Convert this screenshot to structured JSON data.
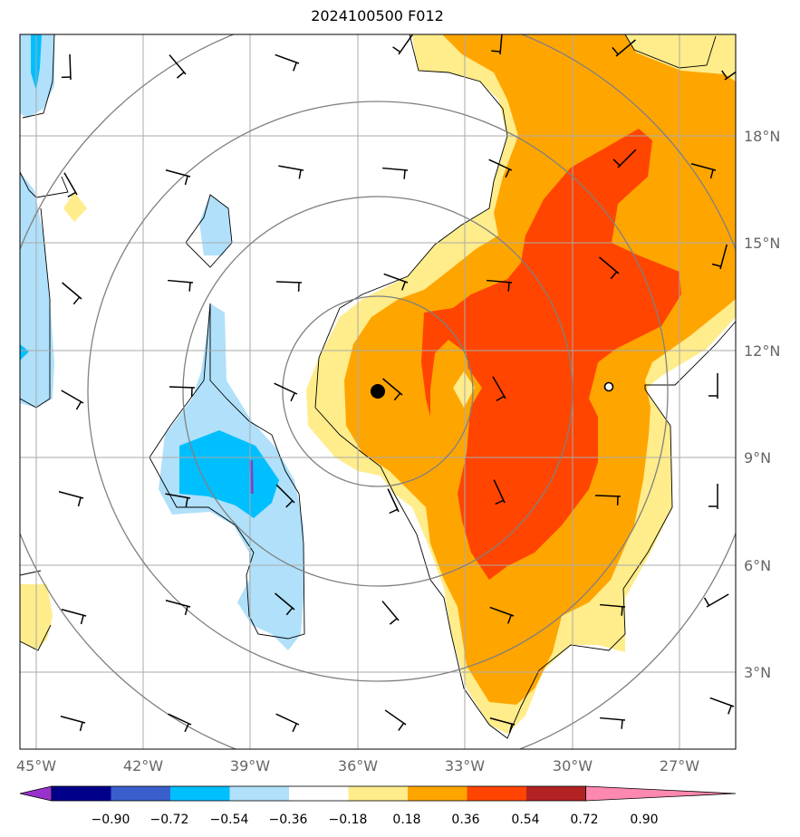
{
  "title": "2024100500 F012",
  "lon_labels": [
    "45°W",
    "42°W",
    "39°W",
    "36°W",
    "33°W",
    "30°W",
    "27°W"
  ],
  "lat_labels": [
    "18°N",
    "15°N",
    "12°N",
    "9°N",
    "6°N",
    "3°N"
  ],
  "colorbar": {
    "ticks": [
      "−0.90",
      "−0.72",
      "−0.54",
      "−0.36",
      "−0.18",
      "0.18",
      "0.36",
      "0.54",
      "0.72",
      "0.90"
    ],
    "colors": [
      "#9932cc",
      "#00008b",
      "#3a5fcd",
      "#00bfff",
      "#b0e0fa",
      "#ffffff",
      "#ffec8b",
      "#ffa500",
      "#ff4500",
      "#b22222",
      "#ff88b0"
    ]
  },
  "fill_colors": {
    "yellow": "#ffec8b",
    "orange": "#ffa500",
    "red": "#ff4500",
    "light_blue": "#b0e0fa",
    "blue": "#00bfff",
    "purple": "#6a4fcf"
  },
  "markers": {
    "storm_center": "filled-circle",
    "secondary": "open-circle"
  }
}
